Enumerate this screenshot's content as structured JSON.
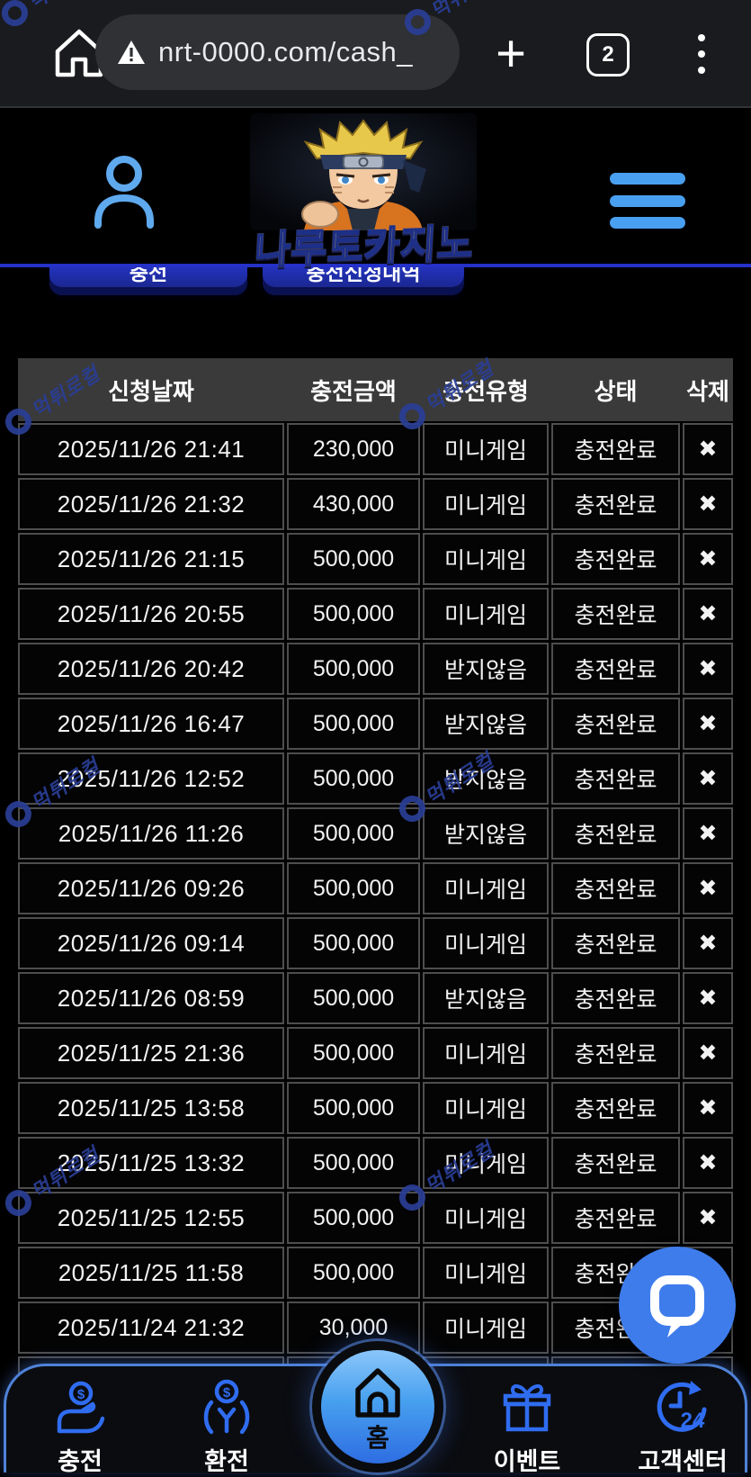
{
  "browser": {
    "url": "nrt-0000.com/cash_",
    "tab_count": "2"
  },
  "header": {
    "logo_text": "나루토카지노"
  },
  "actions": {
    "charge_label": "충전",
    "charge_history_label": "충전신청내역"
  },
  "table": {
    "headers": [
      "신청날짜",
      "충전금액",
      "충전유형",
      "상태",
      "삭제"
    ],
    "delete_glyph": "✖",
    "rows": [
      [
        "2025/11/26 21:41",
        "230,000",
        "미니게임",
        "충전완료"
      ],
      [
        "2025/11/26 21:32",
        "430,000",
        "미니게임",
        "충전완료"
      ],
      [
        "2025/11/26 21:15",
        "500,000",
        "미니게임",
        "충전완료"
      ],
      [
        "2025/11/26 20:55",
        "500,000",
        "미니게임",
        "충전완료"
      ],
      [
        "2025/11/26 20:42",
        "500,000",
        "받지않음",
        "충전완료"
      ],
      [
        "2025/11/26 16:47",
        "500,000",
        "받지않음",
        "충전완료"
      ],
      [
        "2025/11/26 12:52",
        "500,000",
        "받지않음",
        "충전완료"
      ],
      [
        "2025/11/26 11:26",
        "500,000",
        "받지않음",
        "충전완료"
      ],
      [
        "2025/11/26 09:26",
        "500,000",
        "미니게임",
        "충전완료"
      ],
      [
        "2025/11/26 09:14",
        "500,000",
        "미니게임",
        "충전완료"
      ],
      [
        "2025/11/26 08:59",
        "500,000",
        "받지않음",
        "충전완료"
      ],
      [
        "2025/11/25 21:36",
        "500,000",
        "미니게임",
        "충전완료"
      ],
      [
        "2025/11/25 13:58",
        "500,000",
        "미니게임",
        "충전완료"
      ],
      [
        "2025/11/25 13:32",
        "500,000",
        "미니게임",
        "충전완료"
      ],
      [
        "2025/11/25 12:55",
        "500,000",
        "미니게임",
        "충전완료"
      ],
      [
        "2025/11/25 11:58",
        "500,000",
        "미니게임",
        "충전완료"
      ],
      [
        "2025/11/24 21:32",
        "30,000",
        "미니게임",
        "충전완료"
      ]
    ]
  },
  "bottom_nav": {
    "items": [
      {
        "key": "charge",
        "label": "충전"
      },
      {
        "key": "exchange",
        "label": "환전"
      },
      {
        "key": "home",
        "label": "홈"
      },
      {
        "key": "event",
        "label": "이벤트"
      },
      {
        "key": "support",
        "label": "고객센터"
      }
    ]
  },
  "watermark": {
    "text": "먹튀로컬"
  },
  "colors": {
    "accent_blue": "#4aa0f0",
    "button_blue": "#2635c6",
    "header_line_blue": "#2531c8",
    "nav_border_blue": "#4f82d8",
    "chat_blue": "#3e7ceb",
    "logo_orange": "#f7a41f",
    "table_header_bg": "#3a3a3a",
    "cell_border": "#4e4e4e"
  }
}
